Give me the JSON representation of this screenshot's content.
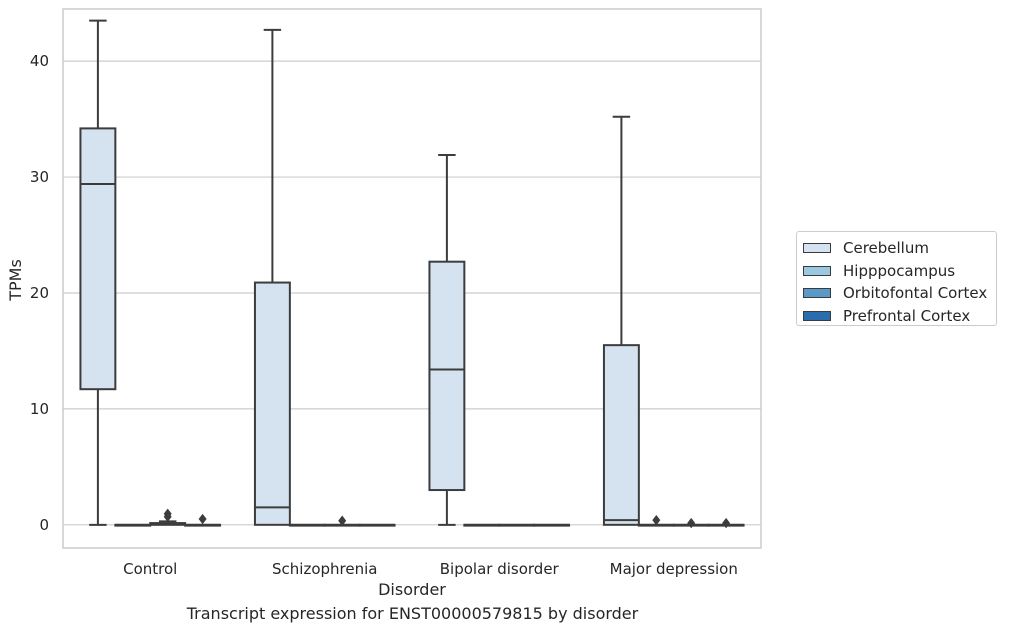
{
  "chart_data": {
    "type": "box",
    "title": "",
    "caption": "Transcript expression for ENST00000579815 by disorder",
    "xlabel": "Disorder",
    "ylabel": "TPMs",
    "ylim": [
      -2,
      44.5
    ],
    "yticks": [
      0,
      10,
      20,
      30,
      40
    ],
    "grid": "horizontal",
    "legend_position": "right",
    "categories": [
      "Control",
      "Schizophrenia",
      "Bipolar disorder",
      "Major depression"
    ],
    "series": [
      {
        "name": "Cerebellum",
        "color": "#d5e3f0",
        "boxes": [
          {
            "whisker_low": 0,
            "q1": 11.7,
            "median": 29.4,
            "q3": 34.2,
            "whisker_high": 43.5,
            "outliers": []
          },
          {
            "whisker_low": 0,
            "q1": 0,
            "median": 1.5,
            "q3": 20.9,
            "whisker_high": 42.7,
            "outliers": []
          },
          {
            "whisker_low": 0,
            "q1": 3.0,
            "median": 13.4,
            "q3": 22.7,
            "whisker_high": 31.9,
            "outliers": []
          },
          {
            "whisker_low": 0,
            "q1": 0,
            "median": 0.4,
            "q3": 15.5,
            "whisker_high": 35.2,
            "outliers": []
          }
        ]
      },
      {
        "name": "Hipppocampus",
        "color": "#9ac8e0",
        "boxes": [
          {
            "whisker_low": 0,
            "q1": 0,
            "median": 0,
            "q3": 0,
            "whisker_high": 0,
            "outliers": []
          },
          {
            "whisker_low": 0,
            "q1": 0,
            "median": 0,
            "q3": 0,
            "whisker_high": 0,
            "outliers": []
          },
          {
            "whisker_low": 0,
            "q1": 0,
            "median": 0,
            "q3": 0,
            "whisker_high": 0,
            "outliers": []
          },
          {
            "whisker_low": 0,
            "q1": 0,
            "median": 0,
            "q3": 0,
            "whisker_high": 0,
            "outliers": [
              0.4
            ]
          }
        ]
      },
      {
        "name": "Orbitofontal Cortex",
        "color": "#5a9ac9",
        "boxes": [
          {
            "whisker_low": 0,
            "q1": 0,
            "median": 0.05,
            "q3": 0.15,
            "whisker_high": 0.3,
            "outliers": [
              0.7,
              0.95
            ]
          },
          {
            "whisker_low": 0,
            "q1": 0,
            "median": 0,
            "q3": 0,
            "whisker_high": 0,
            "outliers": [
              0.35
            ]
          },
          {
            "whisker_low": 0,
            "q1": 0,
            "median": 0,
            "q3": 0,
            "whisker_high": 0,
            "outliers": []
          },
          {
            "whisker_low": 0,
            "q1": 0,
            "median": 0,
            "q3": 0,
            "whisker_high": 0,
            "outliers": [
              0.15
            ]
          }
        ]
      },
      {
        "name": "Prefrontal Cortex",
        "color": "#2a6daf",
        "boxes": [
          {
            "whisker_low": 0,
            "q1": 0,
            "median": 0,
            "q3": 0,
            "whisker_high": 0,
            "outliers": [
              0.5
            ]
          },
          {
            "whisker_low": 0,
            "q1": 0,
            "median": 0,
            "q3": 0,
            "whisker_high": 0,
            "outliers": []
          },
          {
            "whisker_low": 0,
            "q1": 0,
            "median": 0,
            "q3": 0,
            "whisker_high": 0,
            "outliers": []
          },
          {
            "whisker_low": 0,
            "q1": 0,
            "median": 0,
            "q3": 0,
            "whisker_high": 0,
            "outliers": [
              0.15
            ]
          }
        ]
      }
    ]
  }
}
